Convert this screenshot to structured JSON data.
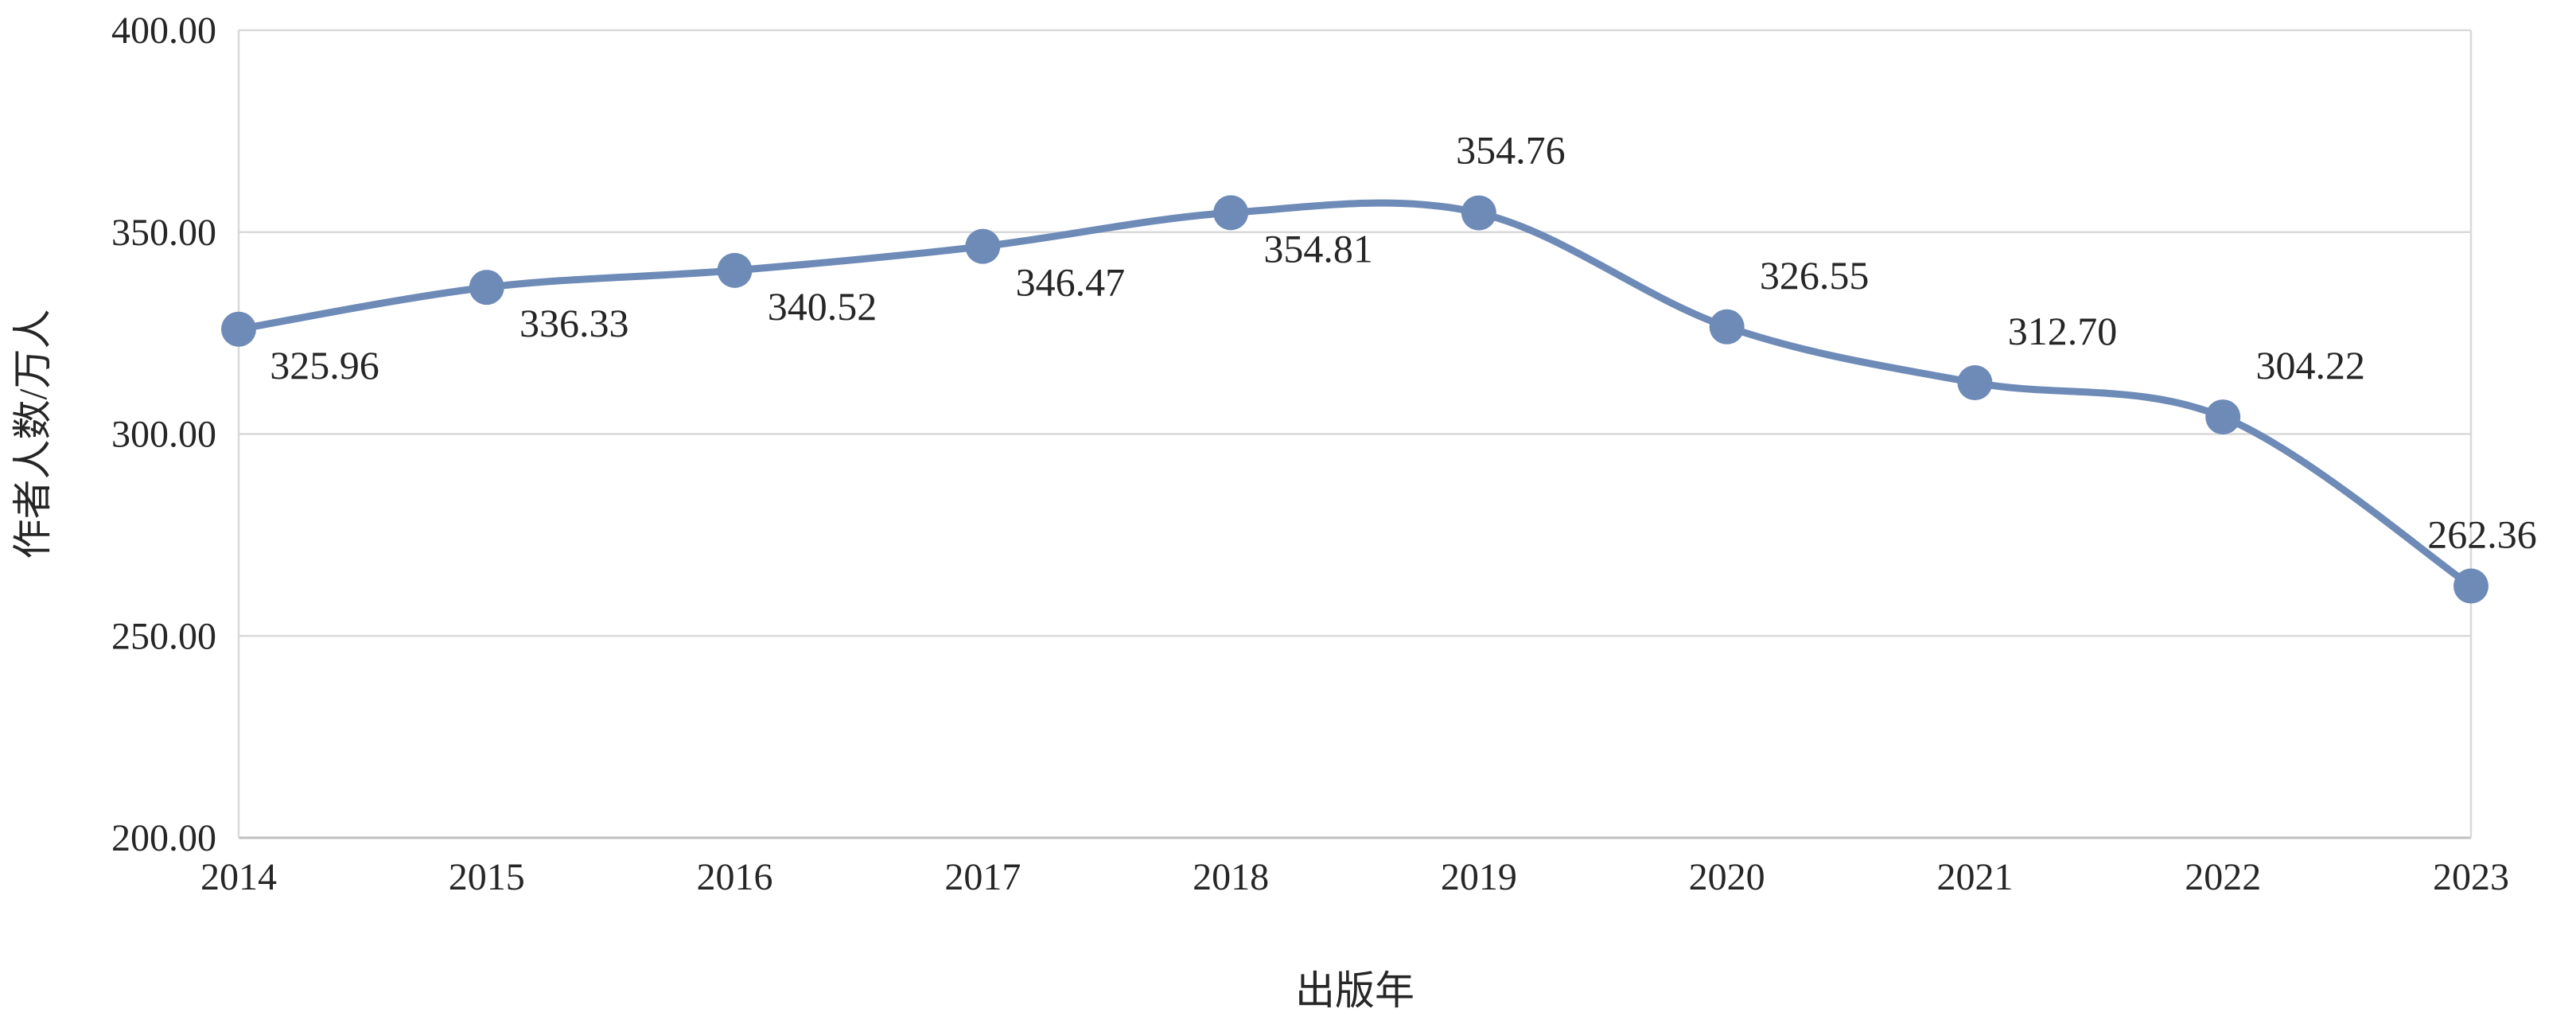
{
  "chart_data": {
    "type": "line",
    "title": "",
    "xlabel": "出版年",
    "ylabel": "作者人数/万人",
    "categories": [
      "2014",
      "2015",
      "2016",
      "2017",
      "2018",
      "2019",
      "2020",
      "2021",
      "2022",
      "2023"
    ],
    "series": [
      {
        "values": [
          325.96,
          336.33,
          340.52,
          346.47,
          354.81,
          354.76,
          326.55,
          312.7,
          304.22,
          262.36
        ],
        "labels": [
          "325.96",
          "336.33",
          "340.52",
          "346.47",
          "354.81",
          "354.76",
          "326.55",
          "312.70",
          "304.22",
          "262.36"
        ],
        "color": "#6E8BB8"
      }
    ],
    "ylim": [
      200,
      400
    ],
    "yticks": [
      "200.00",
      "250.00",
      "300.00",
      "350.00",
      "400.00"
    ],
    "smooth": true,
    "grid": true,
    "legend": "none"
  }
}
